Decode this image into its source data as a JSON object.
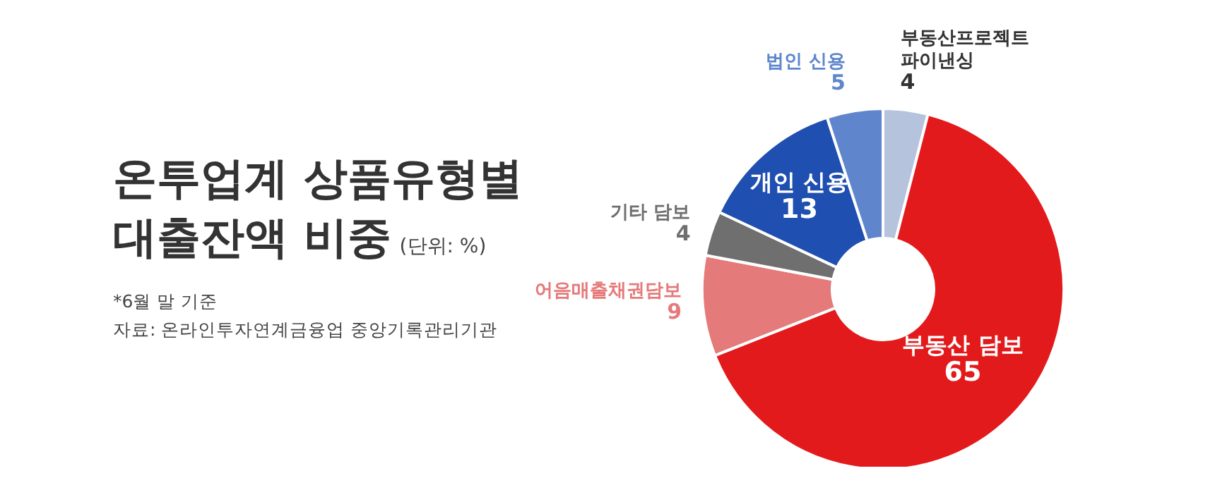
{
  "chart_data": {
    "type": "donut",
    "title": "온투업계 상품유형별 대출잔액 비중",
    "subtitle": "(단위: %)",
    "annotations": [
      "*6월 말 기준",
      "자료: 온라인투자연계금융업 중앙기록관리기관"
    ],
    "categories": [
      "부동산프로젝트 파이낸싱",
      "부동산 담보",
      "어음매출채권담보",
      "기타 담보",
      "개인 신용",
      "법인 신용"
    ],
    "values": [
      4,
      65,
      9,
      4,
      13,
      5
    ],
    "colors": [
      "#b6c3dc",
      "#e31a1c",
      "#e57a7a",
      "#6f6f6f",
      "#1f4fb0",
      "#5f86cc"
    ],
    "data_labels": true
  }
}
